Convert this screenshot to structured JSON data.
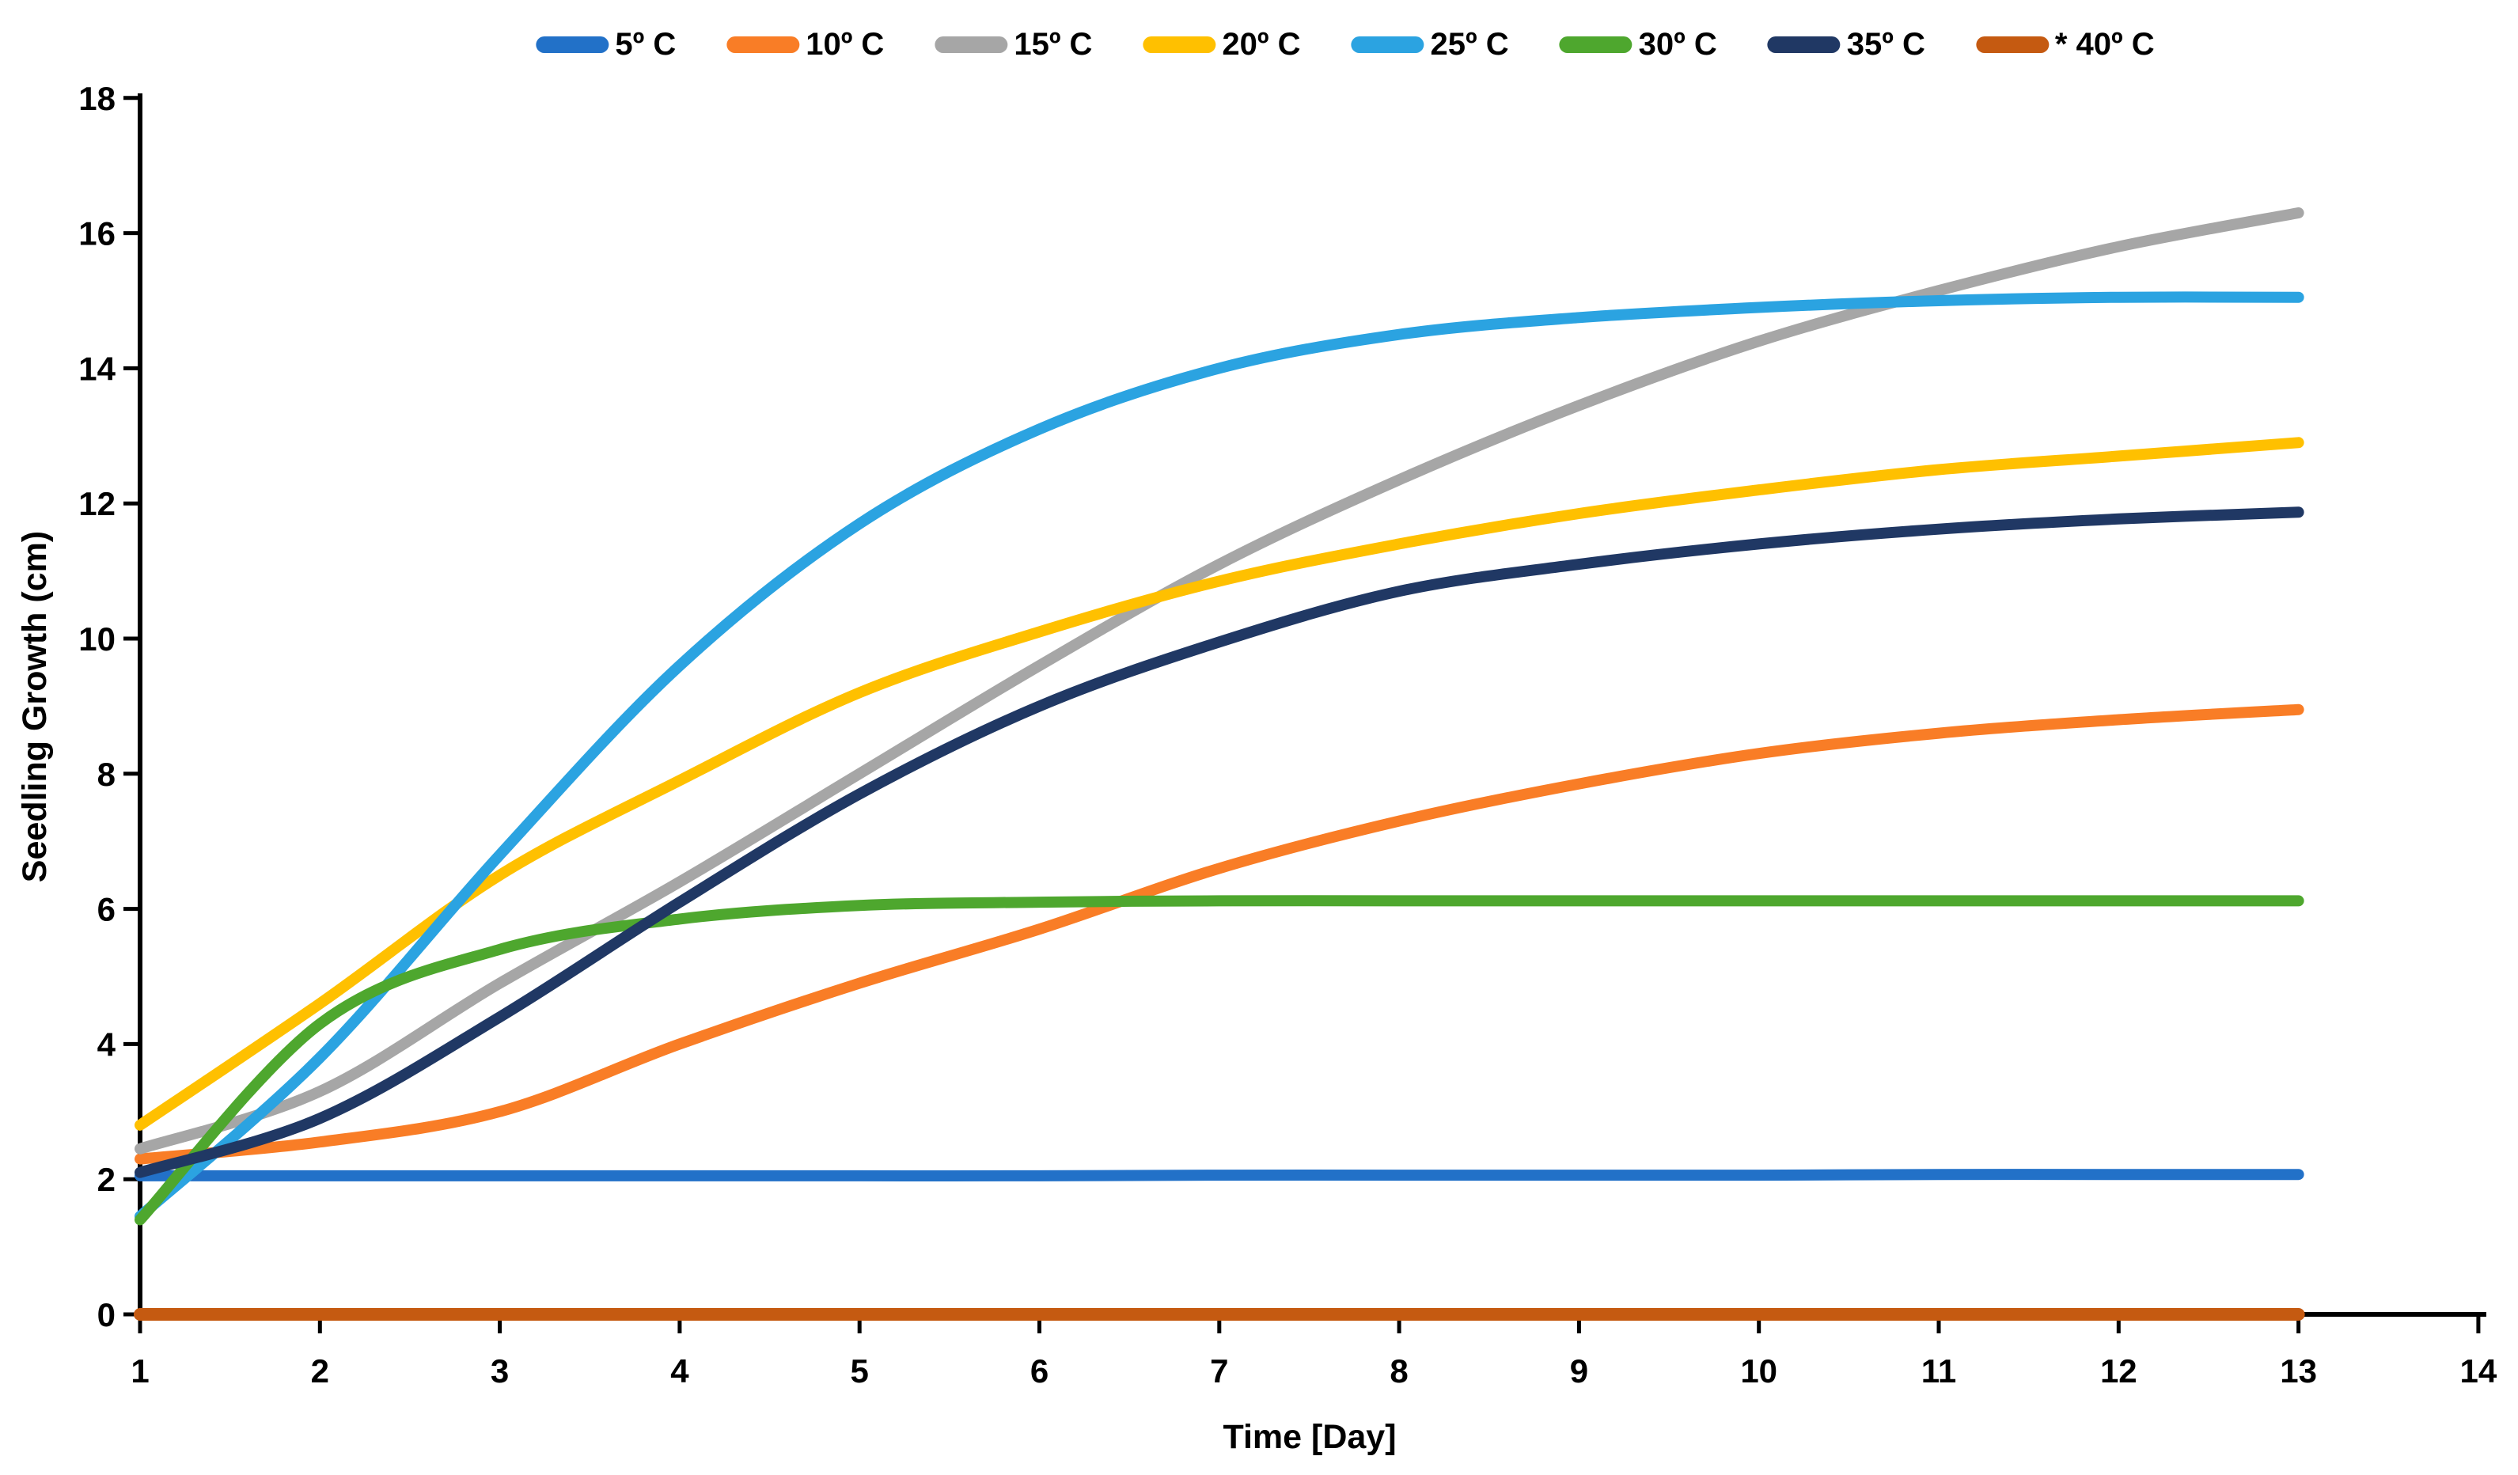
{
  "chart_data": {
    "type": "line",
    "title": "",
    "x_label": "Time [Day]",
    "y_label": "Seedling Growth (cm)",
    "x": [
      1,
      2,
      3,
      4,
      5,
      6,
      7,
      8,
      9,
      10,
      11,
      12,
      13
    ],
    "x_ticks": [
      1,
      2,
      3,
      4,
      5,
      6,
      7,
      8,
      9,
      10,
      11,
      12,
      13,
      14
    ],
    "y_ticks": [
      0,
      2,
      4,
      6,
      8,
      10,
      12,
      14,
      16,
      18
    ],
    "x_range": [
      1,
      14
    ],
    "y_range": [
      0,
      18
    ],
    "grid": false,
    "legend_position": "top",
    "axis_color": "#000000",
    "series": [
      {
        "name": "5º C",
        "color": "#2271C8",
        "values": [
          2.05,
          2.05,
          2.05,
          2.05,
          2.05,
          2.05,
          2.06,
          2.06,
          2.06,
          2.06,
          2.07,
          2.07,
          2.07
        ]
      },
      {
        "name": "10º C",
        "color": "#F97D26",
        "values": [
          2.3,
          2.55,
          3.0,
          4.0,
          4.9,
          5.7,
          6.6,
          7.3,
          7.85,
          8.3,
          8.6,
          8.8,
          8.95
        ]
      },
      {
        "name": "15º C",
        "color": "#A6A6A6",
        "values": [
          2.45,
          3.3,
          4.9,
          6.4,
          8.0,
          9.6,
          11.1,
          12.35,
          13.45,
          14.4,
          15.15,
          15.8,
          16.3
        ]
      },
      {
        "name": "20º C",
        "color": "#FFC000",
        "values": [
          2.8,
          4.6,
          6.5,
          7.9,
          9.2,
          10.1,
          10.85,
          11.4,
          11.85,
          12.2,
          12.5,
          12.7,
          12.9
        ]
      },
      {
        "name": "25º C",
        "color": "#2BA3E1",
        "values": [
          1.45,
          3.8,
          6.8,
          9.6,
          11.7,
          13.1,
          14.0,
          14.5,
          14.75,
          14.9,
          15.0,
          15.05,
          15.05
        ]
      },
      {
        "name": "30º C",
        "color": "#4EA72E",
        "values": [
          1.4,
          4.3,
          5.4,
          5.85,
          6.05,
          6.1,
          6.12,
          6.12,
          6.12,
          6.12,
          6.12,
          6.12,
          6.12
        ]
      },
      {
        "name": "35º C",
        "color": "#203864",
        "values": [
          2.1,
          2.9,
          4.4,
          6.1,
          7.7,
          9.0,
          9.95,
          10.7,
          11.1,
          11.4,
          11.62,
          11.77,
          11.87
        ]
      },
      {
        "name": "* 40º C",
        "color": "#C55A11",
        "values": [
          0,
          0,
          0,
          0,
          0,
          0,
          0,
          0,
          0,
          0,
          0,
          0,
          0
        ]
      }
    ]
  }
}
